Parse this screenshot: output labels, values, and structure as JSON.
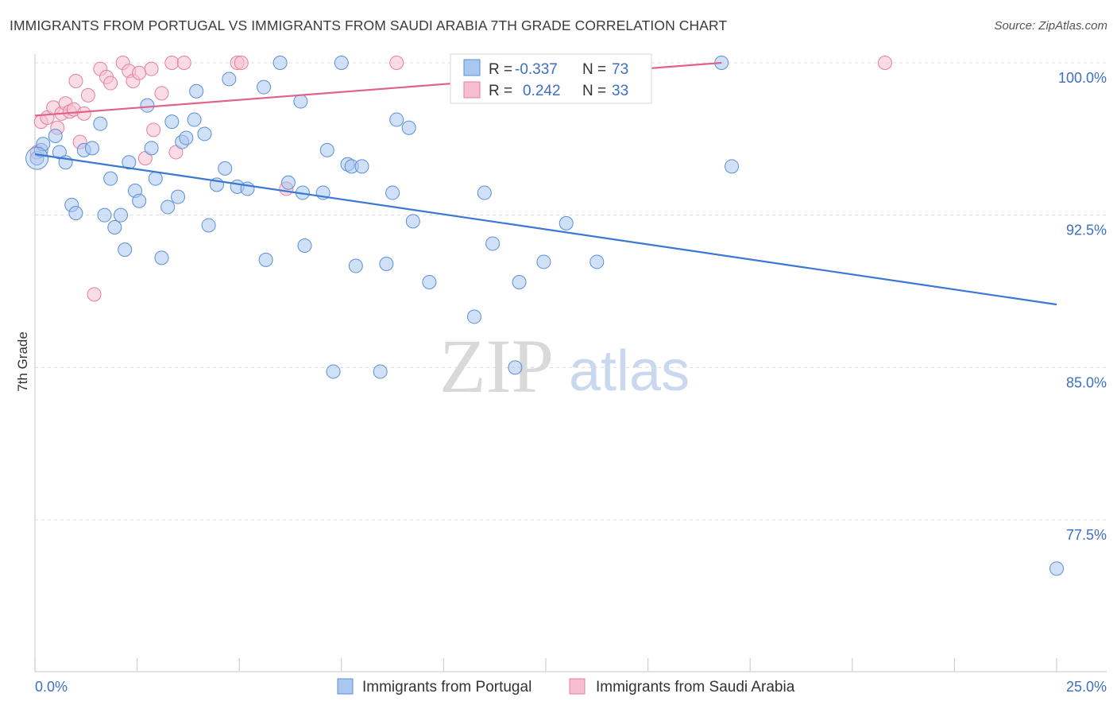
{
  "header": {
    "title": "IMMIGRANTS FROM PORTUGAL VS IMMIGRANTS FROM SAUDI ARABIA 7TH GRADE CORRELATION CHART",
    "source": "Source: ZipAtlas.com"
  },
  "watermark": {
    "zip": "ZIP",
    "atlas": "atlas"
  },
  "colors": {
    "blue_fill": "#a9c7ef",
    "blue_stroke": "#5b8fd6",
    "blue_line": "#3a78d3",
    "pink_fill": "#f6bfcf",
    "pink_stroke": "#e47fa0",
    "pink_line": "#e0628d",
    "grid": "#dcdcdc",
    "axis_text": "#3d6fc2"
  },
  "chart_data": {
    "type": "scatter",
    "title": "IMMIGRANTS FROM PORTUGAL VS IMMIGRANTS FROM SAUDI ARABIA 7TH GRADE CORRELATION CHART",
    "xlabel": "",
    "ylabel": "7th Grade",
    "xlim": [
      0,
      25
    ],
    "ylim": [
      69.5,
      101.5
    ],
    "x_tick_labels": [
      "0.0%",
      "25.0%"
    ],
    "y_ticks": [
      77.5,
      85.0,
      92.5,
      100.0
    ],
    "y_tick_labels": [
      "77.5%",
      "85.0%",
      "92.5%",
      "100.0%"
    ],
    "grid": "horizontal dashed",
    "legend_position": "bottom-center",
    "stats_box": [
      {
        "series": "Immigrants from Portugal",
        "r_label": "R =",
        "r_value": "-0.337",
        "n_label": "N =",
        "n_value": "73"
      },
      {
        "series": "Immigrants from Saudi Arabia",
        "r_label": "R =",
        "r_value": "0.242",
        "n_label": "N =",
        "n_value": "33"
      }
    ],
    "series": [
      {
        "name": "Immigrants from Portugal",
        "color": "#a9c7ef",
        "trend": {
          "x": [
            0.0,
            25.0
          ],
          "y": [
            95.5,
            88.1
          ]
        },
        "points": [
          [
            0.05,
            95.3
          ],
          [
            0.15,
            95.7
          ],
          [
            0.2,
            96.0
          ],
          [
            0.5,
            96.4
          ],
          [
            0.6,
            95.6
          ],
          [
            0.75,
            95.1
          ],
          [
            0.9,
            93.0
          ],
          [
            1.0,
            92.6
          ],
          [
            1.2,
            95.7
          ],
          [
            1.4,
            95.8
          ],
          [
            1.6,
            97.0
          ],
          [
            1.7,
            92.5
          ],
          [
            1.85,
            94.3
          ],
          [
            1.95,
            91.9
          ],
          [
            2.1,
            92.5
          ],
          [
            2.2,
            90.8
          ],
          [
            2.3,
            95.1
          ],
          [
            2.45,
            93.7
          ],
          [
            2.55,
            93.2
          ],
          [
            2.75,
            97.9
          ],
          [
            2.85,
            95.8
          ],
          [
            2.95,
            94.3
          ],
          [
            3.1,
            90.4
          ],
          [
            3.25,
            92.9
          ],
          [
            3.35,
            97.1
          ],
          [
            3.5,
            93.4
          ],
          [
            3.6,
            96.1
          ],
          [
            3.7,
            96.3
          ],
          [
            3.9,
            97.2
          ],
          [
            3.95,
            98.6
          ],
          [
            4.15,
            96.5
          ],
          [
            4.25,
            92.0
          ],
          [
            4.45,
            94.0
          ],
          [
            4.65,
            94.8
          ],
          [
            4.75,
            99.2
          ],
          [
            4.95,
            93.9
          ],
          [
            5.2,
            93.8
          ],
          [
            5.6,
            98.8
          ],
          [
            5.65,
            90.3
          ],
          [
            6.0,
            100.0
          ],
          [
            6.2,
            94.1
          ],
          [
            6.5,
            98.1
          ],
          [
            6.55,
            93.6
          ],
          [
            6.6,
            91.0
          ],
          [
            7.05,
            93.6
          ],
          [
            7.15,
            95.7
          ],
          [
            7.3,
            84.8
          ],
          [
            7.5,
            100.0
          ],
          [
            7.65,
            95.0
          ],
          [
            7.75,
            94.9
          ],
          [
            7.85,
            90.0
          ],
          [
            8.0,
            94.9
          ],
          [
            8.45,
            84.8
          ],
          [
            8.6,
            90.1
          ],
          [
            8.75,
            93.6
          ],
          [
            8.85,
            97.2
          ],
          [
            9.15,
            96.8
          ],
          [
            9.25,
            92.2
          ],
          [
            9.65,
            89.2
          ],
          [
            10.75,
            87.5
          ],
          [
            11.0,
            93.6
          ],
          [
            11.05,
            100.0
          ],
          [
            11.2,
            91.1
          ],
          [
            11.75,
            85.0
          ],
          [
            11.85,
            89.2
          ],
          [
            12.45,
            90.2
          ],
          [
            13.0,
            92.1
          ],
          [
            13.4,
            100.0
          ],
          [
            13.75,
            90.2
          ],
          [
            14.0,
            100.0
          ],
          [
            16.8,
            100.0
          ],
          [
            17.05,
            94.9
          ],
          [
            25.0,
            75.1
          ]
        ]
      },
      {
        "name": "Immigrants from Saudi Arabia",
        "color": "#f6bfcf",
        "trend": {
          "x": [
            0.0,
            16.8
          ],
          "y": [
            97.4,
            100.0
          ]
        },
        "points": [
          [
            0.05,
            95.6
          ],
          [
            0.15,
            97.1
          ],
          [
            0.3,
            97.3
          ],
          [
            0.45,
            97.8
          ],
          [
            0.55,
            96.8
          ],
          [
            0.65,
            97.5
          ],
          [
            0.75,
            98.0
          ],
          [
            0.85,
            97.6
          ],
          [
            0.95,
            97.7
          ],
          [
            1.0,
            99.1
          ],
          [
            1.1,
            96.1
          ],
          [
            1.2,
            97.5
          ],
          [
            1.3,
            98.4
          ],
          [
            1.45,
            88.6
          ],
          [
            1.6,
            99.7
          ],
          [
            1.75,
            99.3
          ],
          [
            1.85,
            99.0
          ],
          [
            2.15,
            100.0
          ],
          [
            2.3,
            99.6
          ],
          [
            2.4,
            99.1
          ],
          [
            2.55,
            99.5
          ],
          [
            2.7,
            95.3
          ],
          [
            2.85,
            99.7
          ],
          [
            2.9,
            96.7
          ],
          [
            3.1,
            98.5
          ],
          [
            3.35,
            100.0
          ],
          [
            3.45,
            95.6
          ],
          [
            3.65,
            100.0
          ],
          [
            4.95,
            100.0
          ],
          [
            5.05,
            100.0
          ],
          [
            6.15,
            93.8
          ],
          [
            8.85,
            100.0
          ],
          [
            20.8,
            100.0
          ]
        ]
      }
    ]
  }
}
